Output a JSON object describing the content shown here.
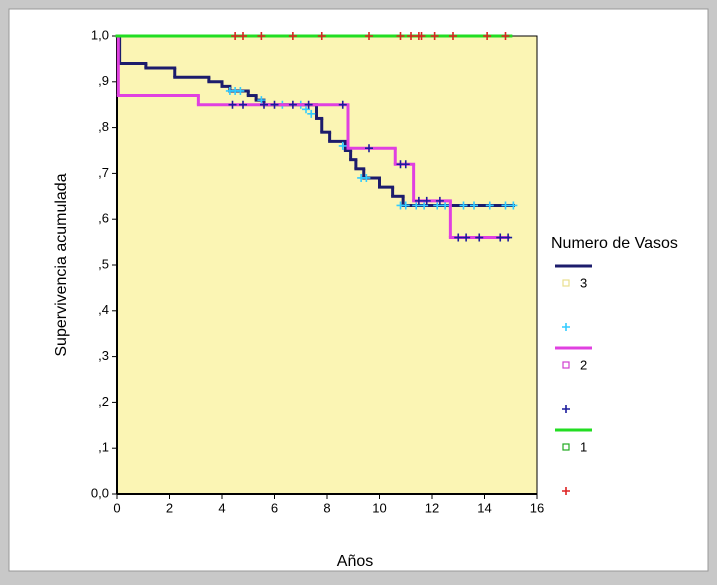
{
  "chart_data": {
    "type": "survival",
    "xlabel": "Años",
    "ylabel": "Supervivencia acumulada",
    "legend_title": "Numero de Vasos",
    "xlim": [
      0,
      16
    ],
    "ylim": [
      0,
      1
    ],
    "xticks": [
      0,
      2,
      4,
      6,
      8,
      10,
      12,
      14,
      16
    ],
    "yticks": [
      {
        "value": 0,
        "label": "0,0"
      },
      {
        "value": 0.1,
        "label": ",1"
      },
      {
        "value": 0.2,
        "label": ",2"
      },
      {
        "value": 0.3,
        "label": ",3"
      },
      {
        "value": 0.4,
        "label": ",4"
      },
      {
        "value": 0.5,
        "label": ",5"
      },
      {
        "value": 0.6,
        "label": ",6"
      },
      {
        "value": 0.7,
        "label": ",7"
      },
      {
        "value": 0.8,
        "label": ",8"
      },
      {
        "value": 0.9,
        "label": ",9"
      },
      {
        "value": 1,
        "label": "1,0"
      }
    ],
    "background": "#fbf5b4",
    "series": [
      {
        "name": "3",
        "color": "#1c1c6c",
        "marker_color": "#e8e090",
        "censor_color": "#33ccff",
        "x": [
          0,
          0.1,
          1.1,
          2.2,
          3.5,
          4.0,
          4.3,
          5.0,
          5.3,
          5.6,
          7.6,
          7.8,
          8.1,
          8.7,
          8.9,
          9.1,
          9.4,
          10.0,
          10.5,
          10.9,
          15.1
        ],
        "values": [
          1.0,
          0.94,
          0.93,
          0.91,
          0.9,
          0.89,
          0.88,
          0.87,
          0.86,
          0.85,
          0.82,
          0.79,
          0.77,
          0.75,
          0.73,
          0.71,
          0.69,
          0.67,
          0.65,
          0.63,
          0.63
        ],
        "censor_x": [
          4.3,
          4.5,
          4.7,
          5.5,
          6.3,
          7.0,
          7.2,
          7.4,
          8.6,
          9.3,
          9.5,
          10.8,
          11.0,
          11.4,
          11.7,
          12.2,
          12.5,
          13.2,
          13.6,
          14.2,
          14.8,
          15.1
        ],
        "censor_values": [
          0.88,
          0.88,
          0.88,
          0.86,
          0.85,
          0.85,
          0.84,
          0.83,
          0.76,
          0.69,
          0.69,
          0.63,
          0.63,
          0.63,
          0.63,
          0.63,
          0.63,
          0.63,
          0.63,
          0.63,
          0.63,
          0.63
        ]
      },
      {
        "name": "2",
        "color": "#e040e0",
        "marker_color": "#d040d0",
        "censor_color": "#1c1c9c",
        "x": [
          0,
          0.05,
          3.1,
          8.8,
          10.6,
          11.3,
          12.7,
          14.9
        ],
        "values": [
          1.0,
          0.87,
          0.85,
          0.755,
          0.72,
          0.64,
          0.56,
          0.56
        ],
        "censor_x": [
          4.4,
          4.8,
          5.6,
          6.0,
          6.7,
          7.3,
          8.6,
          9.6,
          10.8,
          11.0,
          11.5,
          11.8,
          12.3,
          13.0,
          13.3,
          13.8,
          14.6,
          14.9
        ],
        "censor_values": [
          0.85,
          0.85,
          0.85,
          0.85,
          0.85,
          0.85,
          0.85,
          0.755,
          0.72,
          0.72,
          0.64,
          0.64,
          0.64,
          0.56,
          0.56,
          0.56,
          0.56,
          0.56
        ]
      },
      {
        "name": "1",
        "color": "#22dd22",
        "marker_color": "#22aa22",
        "censor_color": "#dd2222",
        "x": [
          0,
          15.0
        ],
        "values": [
          1.0,
          1.0
        ],
        "censor_x": [
          4.5,
          4.8,
          5.5,
          6.7,
          7.8,
          9.6,
          10.8,
          11.2,
          11.5,
          11.6,
          12.1,
          12.8,
          14.1,
          14.8
        ],
        "censor_values": [
          1,
          1,
          1,
          1,
          1,
          1,
          1,
          1,
          1,
          1,
          1,
          1,
          1,
          1
        ]
      }
    ]
  }
}
